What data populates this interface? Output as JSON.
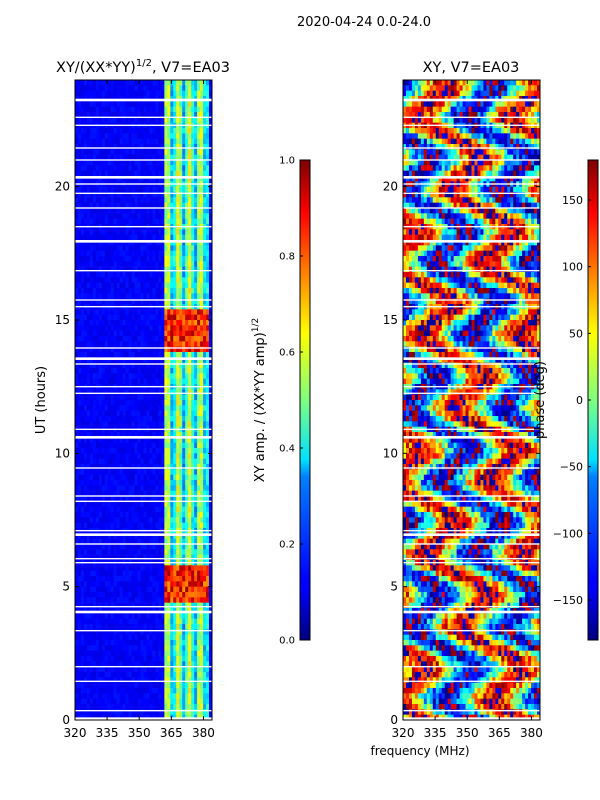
{
  "figure": {
    "suptitle": "2020-04-24 0.0-24.0",
    "shared_xlabel": "frequency (MHz)"
  },
  "chart_data": [
    {
      "type": "heatmap",
      "title": "XY/(XX*YY)",
      "title_exponent": "1/2",
      "title_suffix": ", V7=EA03",
      "xlabel": "",
      "ylabel": "UT (hours)",
      "xlim": [
        320,
        384
      ],
      "ylim": [
        0,
        24
      ],
      "xticks": [
        "320",
        "335",
        "350",
        "365",
        "380"
      ],
      "yticks": [
        "0",
        "5",
        "10",
        "15",
        "20"
      ],
      "colorbar": {
        "label": "XY amp. / (XX*YY amp)",
        "label_exponent": "1/2",
        "range": [
          0.0,
          1.0
        ],
        "ticks": [
          "0.0",
          "0.2",
          "0.4",
          "0.6",
          "0.8",
          "1.0"
        ],
        "colormap": "jet"
      },
      "description_values": {
        "background_level": 0.12,
        "active_band_mhz": [
          362,
          382
        ],
        "active_band_level": 0.45,
        "peak_periods_hours": [
          [
            4.4,
            5.8
          ],
          [
            13.9,
            15.3
          ]
        ],
        "peak_level": 0.85
      }
    },
    {
      "type": "heatmap",
      "title": "XY, V7=EA03",
      "xlabel": "",
      "ylabel": "phase (deg)",
      "xlim": [
        320,
        384
      ],
      "ylim": [
        0,
        24
      ],
      "xticks": [
        "320",
        "335",
        "350",
        "365",
        "380"
      ],
      "yticks": [
        "0",
        "5",
        "10",
        "15",
        "20"
      ],
      "colorbar": {
        "label": "phase (deg)",
        "range": [
          -180,
          180
        ],
        "ticks": [
          "−150",
          "−100",
          "−50",
          "0",
          "50",
          "100",
          "150"
        ],
        "tick_values": [
          -150,
          -100,
          -50,
          0,
          50,
          100,
          150
        ],
        "colormap": "jet"
      }
    }
  ],
  "gaps_hours": [
    0.05,
    0.35,
    1.45,
    2.0,
    3.35,
    4.05,
    4.25,
    5.9,
    6.05,
    6.6,
    6.95,
    7.1,
    8.2,
    8.4,
    9.45,
    10.6,
    10.9,
    12.25,
    12.5,
    13.35,
    13.55,
    13.95,
    15.5,
    15.75,
    16.85,
    17.95,
    18.5,
    19.2,
    19.75,
    20.1,
    20.35,
    21.0,
    21.45,
    22.3,
    22.6,
    23.25
  ]
}
